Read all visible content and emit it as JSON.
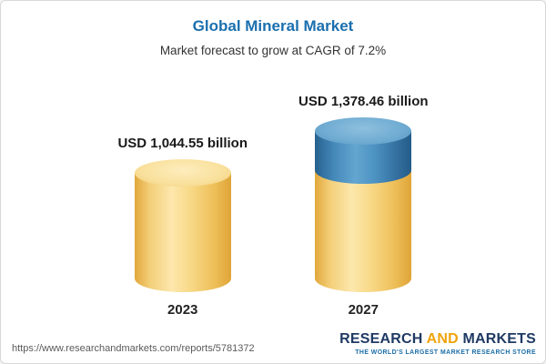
{
  "header": {
    "title": "Global Mineral Market",
    "subtitle": "Market forecast to grow at CAGR of 7.2%"
  },
  "chart_data": {
    "type": "bar",
    "subtype": "3d-cylinder",
    "title": "Global Mineral Market",
    "subtitle": "Market forecast to grow at CAGR of 7.2%",
    "cagr_percent": 7.2,
    "categories": [
      "2023",
      "2027"
    ],
    "values": [
      1044.55,
      1378.46
    ],
    "value_labels": [
      "USD 1,044.55 billion",
      "USD 1,378.46 billion"
    ],
    "unit": "USD billion",
    "xlabel": "",
    "ylabel": "",
    "legend": "none",
    "grid": false,
    "colors": {
      "base_segment": "#F5CE6E",
      "growth_segment": "#4589BA"
    }
  },
  "bars": [
    {
      "year": "2023",
      "label": "USD 1,044.55 billion"
    },
    {
      "year": "2027",
      "label": "USD 1,378.46 billion"
    }
  ],
  "footer": {
    "url": "https://www.researchandmarkets.com/reports/5781372",
    "logo": {
      "research": "RESEARCH",
      "and": "AND",
      "markets": "MARKETS",
      "tagline": "THE WORLD'S LARGEST MARKET RESEARCH STORE"
    }
  }
}
